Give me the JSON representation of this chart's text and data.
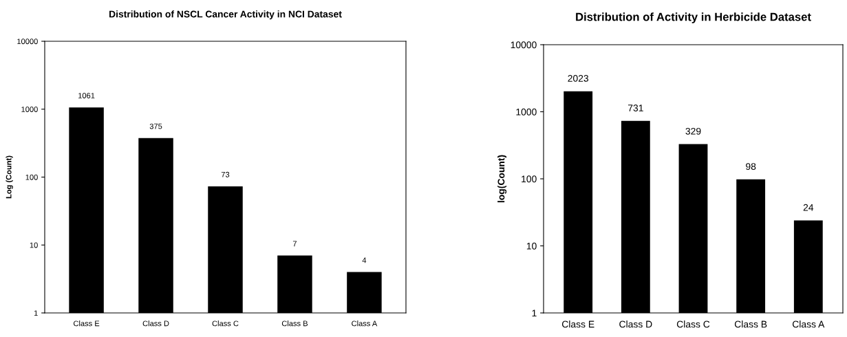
{
  "chart_data": [
    {
      "type": "bar",
      "title": "Distribution of NSCL Cancer Activity in NCI Dataset",
      "ylabel": "Log (Count)",
      "categories": [
        "Class E",
        "Class D",
        "Class C",
        "Class B",
        "Class A"
      ],
      "values": [
        1061,
        375,
        73,
        7,
        4
      ],
      "color": "#000000",
      "log": true,
      "ylim": [
        1,
        10000
      ],
      "yticks": [
        1,
        10,
        100,
        1000,
        10000
      ],
      "data_labels": true,
      "grid": false
    },
    {
      "type": "bar",
      "title": "Distribution of Activity in Herbicide Dataset",
      "ylabel": "log(Count)",
      "categories": [
        "Class E",
        "Class D",
        "Class C",
        "Class B",
        "Class A"
      ],
      "values": [
        2023,
        731,
        329,
        98,
        24
      ],
      "color": "#000000",
      "log": true,
      "ylim": [
        1,
        10000
      ],
      "yticks": [
        1,
        10,
        100,
        1000,
        10000
      ],
      "data_labels": true,
      "grid": false
    }
  ]
}
